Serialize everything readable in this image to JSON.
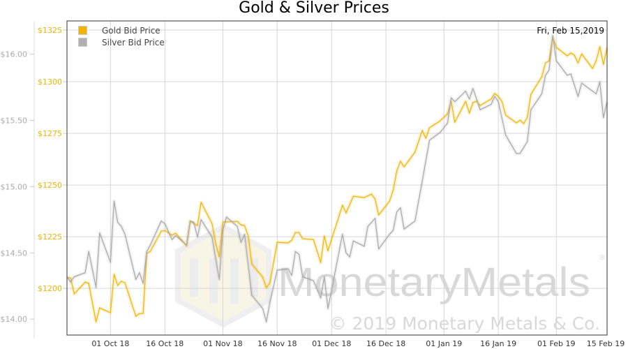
{
  "chart_data": {
    "type": "line",
    "title": "Gold & Silver Prices",
    "annotation": "Fri, Feb 15,2019",
    "watermark": {
      "logo_text": "MonetaryMetals",
      "registered": "®",
      "copyright": "© 2019 Monetary Metals & Co."
    },
    "legend": {
      "placement": "top-left",
      "entries": [
        "Gold Bid Price",
        "Silver Bid Price"
      ]
    },
    "grid": true,
    "colors": {
      "gold": "#f0b400",
      "silver": "#a8a8a8"
    },
    "xlim": [
      "2018-09-19",
      "2019-02-15"
    ],
    "x_ticks": [
      {
        "date": "2018-10-01",
        "label": "01 Oct 18"
      },
      {
        "date": "2018-10-16",
        "label": "16 Oct 18"
      },
      {
        "date": "2018-11-01",
        "label": "01 Nov 18"
      },
      {
        "date": "2018-11-16",
        "label": "16 Nov 18"
      },
      {
        "date": "2018-12-01",
        "label": "01 Dec 18"
      },
      {
        "date": "2018-12-16",
        "label": "16 Dec 18"
      },
      {
        "date": "2019-01-01",
        "label": "01 Jan 19"
      },
      {
        "date": "2019-01-16",
        "label": "16 Jan 19"
      },
      {
        "date": "2019-02-01",
        "label": "01 Feb 19"
      },
      {
        "date": "2019-02-15",
        "label": "15 Feb 19"
      }
    ],
    "y_gold": {
      "ylim": [
        1177.4,
        1329.4
      ],
      "ticks": [
        {
          "value": 1200,
          "label": "$1200"
        },
        {
          "value": 1225,
          "label": "$1225"
        },
        {
          "value": 1250,
          "label": "$1250"
        },
        {
          "value": 1275,
          "label": "$1275"
        },
        {
          "value": 1300,
          "label": "$1300"
        },
        {
          "value": 1325,
          "label": "$1325"
        }
      ]
    },
    "y_silver": {
      "ylim": [
        13.88,
        16.25
      ],
      "ticks": [
        {
          "value": 14.0,
          "label": "$14.00"
        },
        {
          "value": 14.5,
          "label": "$14.50"
        },
        {
          "value": 15.0,
          "label": "$15.00"
        },
        {
          "value": 15.5,
          "label": "$15.50"
        },
        {
          "value": 16.0,
          "label": "$16.00"
        }
      ]
    },
    "series": [
      {
        "name": "Gold Bid Price",
        "axis": "gold",
        "points": [
          [
            "2018-09-19",
            1205.1
          ],
          [
            "2018-09-20",
            1205.1
          ],
          [
            "2018-09-21",
            1197.3
          ],
          [
            "2018-09-24",
            1203.0
          ],
          [
            "2018-09-25",
            1202.4
          ],
          [
            "2018-09-27",
            1183.8
          ],
          [
            "2018-09-28",
            1190.5
          ],
          [
            "2018-10-01",
            1188.2
          ],
          [
            "2018-10-02",
            1206.8
          ],
          [
            "2018-10-03",
            1201.4
          ],
          [
            "2018-10-04",
            1203.4
          ],
          [
            "2018-10-05",
            1202.7
          ],
          [
            "2018-10-08",
            1186.5
          ],
          [
            "2018-10-09",
            1187.8
          ],
          [
            "2018-10-10",
            1187.8
          ],
          [
            "2018-10-11",
            1216.9
          ],
          [
            "2018-10-12",
            1217.9
          ],
          [
            "2018-10-15",
            1227.7
          ],
          [
            "2018-10-16",
            1228.0
          ],
          [
            "2018-10-18",
            1225.7
          ],
          [
            "2018-10-19",
            1226.7
          ],
          [
            "2018-10-22",
            1220.6
          ],
          [
            "2018-10-23",
            1232.4
          ],
          [
            "2018-10-24",
            1231.4
          ],
          [
            "2018-10-25",
            1230.4
          ],
          [
            "2018-10-26",
            1241.6
          ],
          [
            "2018-10-29",
            1231.4
          ],
          [
            "2018-10-30",
            1222.0
          ],
          [
            "2018-10-31",
            1215.2
          ],
          [
            "2018-11-01",
            1232.1
          ],
          [
            "2018-11-05",
            1232.4
          ],
          [
            "2018-11-06",
            1230.7
          ],
          [
            "2018-11-07",
            1230.4
          ],
          [
            "2018-11-08",
            1225.3
          ],
          [
            "2018-11-09",
            1211.8
          ],
          [
            "2018-11-12",
            1205.4
          ],
          [
            "2018-11-13",
            1200.3
          ],
          [
            "2018-11-14",
            1202.7
          ],
          [
            "2018-11-16",
            1222.3
          ],
          [
            "2018-11-19",
            1222.0
          ],
          [
            "2018-11-20",
            1223.3
          ],
          [
            "2018-11-21",
            1227.0
          ],
          [
            "2018-11-22",
            1227.0
          ],
          [
            "2018-11-23",
            1224.0
          ],
          [
            "2018-11-26",
            1223.6
          ],
          [
            "2018-11-28",
            1212.5
          ],
          [
            "2018-11-29",
            1225.3
          ],
          [
            "2018-11-30",
            1218.2
          ],
          [
            "2018-12-04",
            1240.2
          ],
          [
            "2018-12-05",
            1236.5
          ],
          [
            "2018-12-07",
            1244.6
          ],
          [
            "2018-12-10",
            1243.9
          ],
          [
            "2018-12-12",
            1245.6
          ],
          [
            "2018-12-13",
            1243.2
          ],
          [
            "2018-12-14",
            1235.5
          ],
          [
            "2018-12-17",
            1242.2
          ],
          [
            "2018-12-18",
            1247.6
          ],
          [
            "2018-12-19",
            1256.8
          ],
          [
            "2018-12-20",
            1261.5
          ],
          [
            "2018-12-21",
            1258.8
          ],
          [
            "2018-12-24",
            1265.9
          ],
          [
            "2018-12-26",
            1276.4
          ],
          [
            "2018-12-27",
            1272.6
          ],
          [
            "2018-12-28",
            1277.7
          ],
          [
            "2018-12-31",
            1281.1
          ],
          [
            "2019-01-02",
            1284.5
          ],
          [
            "2019-01-03",
            1290.5
          ],
          [
            "2019-01-04",
            1280.4
          ],
          [
            "2019-01-07",
            1290.5
          ],
          [
            "2019-01-08",
            1284.8
          ],
          [
            "2019-01-09",
            1289.9
          ],
          [
            "2019-01-10",
            1290.5
          ],
          [
            "2019-01-11",
            1288.5
          ],
          [
            "2019-01-14",
            1291.6
          ],
          [
            "2019-01-15",
            1294.3
          ],
          [
            "2019-01-16",
            1292.9
          ],
          [
            "2019-01-17",
            1290.5
          ],
          [
            "2019-01-18",
            1283.8
          ],
          [
            "2019-01-21",
            1280.1
          ],
          [
            "2019-01-22",
            1281.4
          ],
          [
            "2019-01-23",
            1279.7
          ],
          [
            "2019-01-24",
            1282.8
          ],
          [
            "2019-01-25",
            1293.9
          ],
          [
            "2019-01-28",
            1302.4
          ],
          [
            "2019-01-29",
            1309.1
          ],
          [
            "2019-01-30",
            1310.1
          ],
          [
            "2019-01-31",
            1321.6
          ],
          [
            "2019-02-01",
            1316.6
          ],
          [
            "2019-02-04",
            1312.5
          ],
          [
            "2019-02-05",
            1313.9
          ],
          [
            "2019-02-06",
            1312.8
          ],
          [
            "2019-02-07",
            1309.1
          ],
          [
            "2019-02-08",
            1313.5
          ],
          [
            "2019-02-11",
            1306.4
          ],
          [
            "2019-02-12",
            1310.1
          ],
          [
            "2019-02-13",
            1316.9
          ],
          [
            "2019-02-14",
            1308.4
          ],
          [
            "2019-02-15",
            1316.6
          ]
        ]
      },
      {
        "name": "Silver Bid Price",
        "axis": "silver",
        "points": [
          [
            "2018-09-19",
            14.32
          ],
          [
            "2018-09-20",
            14.28
          ],
          [
            "2018-09-21",
            14.32
          ],
          [
            "2018-09-24",
            14.35
          ],
          [
            "2018-09-25",
            14.51
          ],
          [
            "2018-09-27",
            14.24
          ],
          [
            "2018-09-28",
            14.65
          ],
          [
            "2018-10-01",
            14.43
          ],
          [
            "2018-10-02",
            14.89
          ],
          [
            "2018-10-03",
            14.73
          ],
          [
            "2018-10-04",
            14.7
          ],
          [
            "2018-10-05",
            14.64
          ],
          [
            "2018-10-08",
            14.3
          ],
          [
            "2018-10-09",
            14.35
          ],
          [
            "2018-10-10",
            14.27
          ],
          [
            "2018-10-11",
            14.51
          ],
          [
            "2018-10-12",
            14.56
          ],
          [
            "2018-10-15",
            14.74
          ],
          [
            "2018-10-16",
            14.72
          ],
          [
            "2018-10-18",
            14.6
          ],
          [
            "2018-10-19",
            14.63
          ],
          [
            "2018-10-22",
            14.56
          ],
          [
            "2018-10-23",
            14.74
          ],
          [
            "2018-10-24",
            14.73
          ],
          [
            "2018-10-25",
            14.62
          ],
          [
            "2018-10-26",
            14.75
          ],
          [
            "2018-10-29",
            14.62
          ],
          [
            "2018-10-31",
            14.3
          ],
          [
            "2018-11-01",
            14.67
          ],
          [
            "2018-11-02",
            14.77
          ],
          [
            "2018-11-05",
            14.7
          ],
          [
            "2018-11-06",
            14.58
          ],
          [
            "2018-11-07",
            14.64
          ],
          [
            "2018-11-09",
            14.18
          ],
          [
            "2018-11-12",
            14.08
          ],
          [
            "2018-11-13",
            13.98
          ],
          [
            "2018-11-14",
            14.13
          ],
          [
            "2018-11-16",
            14.37
          ],
          [
            "2018-11-19",
            14.38
          ],
          [
            "2018-11-20",
            14.33
          ],
          [
            "2018-11-21",
            14.51
          ],
          [
            "2018-11-22",
            14.49
          ],
          [
            "2018-11-23",
            14.32
          ],
          [
            "2018-11-26",
            14.29
          ],
          [
            "2018-11-28",
            14.16
          ],
          [
            "2018-11-29",
            14.32
          ],
          [
            "2018-11-30",
            14.08
          ],
          [
            "2018-12-04",
            14.64
          ],
          [
            "2018-12-05",
            14.5
          ],
          [
            "2018-12-06",
            14.47
          ],
          [
            "2018-12-07",
            14.59
          ],
          [
            "2018-12-10",
            14.55
          ],
          [
            "2018-12-11",
            14.7
          ],
          [
            "2018-12-13",
            14.76
          ],
          [
            "2018-12-14",
            14.53
          ],
          [
            "2018-12-17",
            14.64
          ],
          [
            "2018-12-18",
            14.67
          ],
          [
            "2018-12-19",
            14.81
          ],
          [
            "2018-12-20",
            14.84
          ],
          [
            "2018-12-21",
            14.68
          ],
          [
            "2018-12-24",
            14.74
          ],
          [
            "2018-12-26",
            15.04
          ],
          [
            "2018-12-28",
            15.35
          ],
          [
            "2018-12-31",
            15.41
          ],
          [
            "2019-01-02",
            15.48
          ],
          [
            "2019-01-03",
            15.67
          ],
          [
            "2019-01-04",
            15.64
          ],
          [
            "2019-01-07",
            15.72
          ],
          [
            "2019-01-08",
            15.66
          ],
          [
            "2019-01-09",
            15.74
          ],
          [
            "2019-01-11",
            15.58
          ],
          [
            "2019-01-14",
            15.62
          ],
          [
            "2019-01-15",
            15.68
          ],
          [
            "2019-01-16",
            15.64
          ],
          [
            "2019-01-18",
            15.39
          ],
          [
            "2019-01-21",
            15.25
          ],
          [
            "2019-01-22",
            15.25
          ],
          [
            "2019-01-24",
            15.34
          ],
          [
            "2019-01-25",
            15.58
          ],
          [
            "2019-01-28",
            15.7
          ],
          [
            "2019-01-29",
            15.84
          ],
          [
            "2019-01-30",
            15.88
          ],
          [
            "2019-01-31",
            16.14
          ],
          [
            "2019-02-01",
            15.95
          ],
          [
            "2019-02-04",
            15.84
          ],
          [
            "2019-02-05",
            15.85
          ],
          [
            "2019-02-07",
            15.68
          ],
          [
            "2019-02-08",
            15.78
          ],
          [
            "2019-02-12",
            15.7
          ],
          [
            "2019-02-13",
            15.79
          ],
          [
            "2019-02-14",
            15.52
          ],
          [
            "2019-02-15",
            15.64
          ]
        ]
      }
    ]
  }
}
